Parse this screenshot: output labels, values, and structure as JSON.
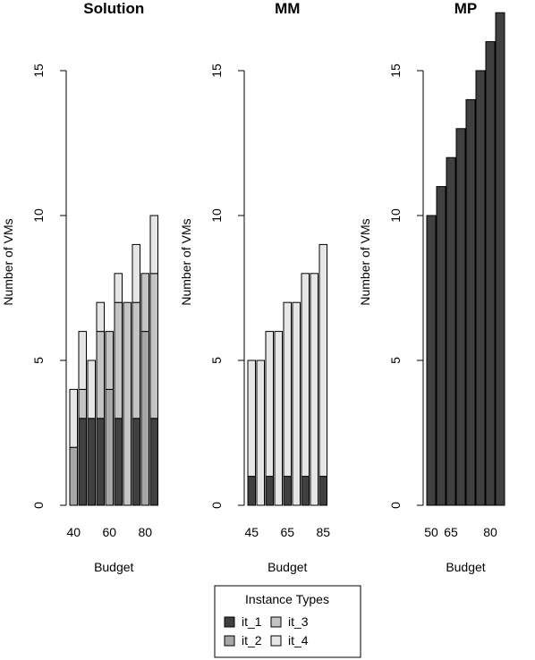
{
  "legend": {
    "title": "Instance Types",
    "entries": [
      {
        "label": "it_1",
        "color": "#404040"
      },
      {
        "label": "it_3",
        "color": "#c4c4c4"
      },
      {
        "label": "it_2",
        "color": "#a6a6a6"
      },
      {
        "label": "it_4",
        "color": "#e6e6e6"
      }
    ]
  },
  "chart_data": [
    {
      "type": "bar",
      "stacked": true,
      "title": "Solution",
      "xlabel": "Budget",
      "ylabel": "Number of VMs",
      "ylim": [
        0,
        15
      ],
      "yticks": [
        0,
        5,
        10,
        15
      ],
      "xtick_labels": [
        {
          "index": 0,
          "label": "40"
        },
        {
          "index": 4,
          "label": "60"
        },
        {
          "index": 8,
          "label": "80"
        }
      ],
      "series_order": [
        "it_2",
        "it_1",
        "it_3",
        "it_4"
      ],
      "bars": [
        {
          "it_1": 0,
          "it_2": 2,
          "it_3": 0,
          "it_4": 2
        },
        {
          "it_1": 3,
          "it_2": 0,
          "it_3": 1,
          "it_4": 2
        },
        {
          "it_1": 3,
          "it_2": 0,
          "it_3": 0,
          "it_4": 2
        },
        {
          "it_1": 3,
          "it_2": 0,
          "it_3": 3,
          "it_4": 1
        },
        {
          "it_1": 0,
          "it_2": 4,
          "it_3": 2,
          "it_4": 0
        },
        {
          "it_1": 3,
          "it_2": 0,
          "it_3": 4,
          "it_4": 1
        },
        {
          "it_1": 0,
          "it_2": 0,
          "it_3": 7,
          "it_4": 0
        },
        {
          "it_1": 3,
          "it_2": 0,
          "it_3": 4,
          "it_4": 2
        },
        {
          "it_1": 0,
          "it_2": 6,
          "it_3": 2,
          "it_4": 0
        },
        {
          "it_1": 3,
          "it_2": 0,
          "it_3": 5,
          "it_4": 2
        }
      ]
    },
    {
      "type": "bar",
      "stacked": true,
      "title": "MM",
      "xlabel": "Budget",
      "ylabel": "Number of VMs",
      "ylim": [
        0,
        15
      ],
      "yticks": [
        0,
        5,
        10,
        15
      ],
      "xtick_labels": [
        {
          "index": 0,
          "label": "45"
        },
        {
          "index": 4,
          "label": "65"
        },
        {
          "index": 8,
          "label": "85"
        }
      ],
      "series_order": [
        "it_1",
        "it_4"
      ],
      "bars": [
        {
          "it_1": 1,
          "it_4": 4
        },
        {
          "it_1": 0,
          "it_4": 5
        },
        {
          "it_1": 1,
          "it_4": 5
        },
        {
          "it_1": 0,
          "it_4": 6
        },
        {
          "it_1": 1,
          "it_4": 6
        },
        {
          "it_1": 0,
          "it_4": 7
        },
        {
          "it_1": 1,
          "it_4": 7
        },
        {
          "it_1": 0,
          "it_4": 8
        },
        {
          "it_1": 1,
          "it_4": 8
        }
      ]
    },
    {
      "type": "bar",
      "stacked": true,
      "title": "MP",
      "xlabel": "Budget",
      "ylabel": "Number of VMs",
      "ylim": [
        0,
        15
      ],
      "yticks": [
        0,
        5,
        10,
        15
      ],
      "xtick_labels": [
        {
          "index": 0,
          "label": "50"
        },
        {
          "index": 2,
          "label": "65"
        },
        {
          "index": 6,
          "label": "80"
        }
      ],
      "series_order": [
        "it_1"
      ],
      "bars": [
        {
          "it_1": 10
        },
        {
          "it_1": 11
        },
        {
          "it_1": 12
        },
        {
          "it_1": 13
        },
        {
          "it_1": 14
        },
        {
          "it_1": 15
        },
        {
          "it_1": 16
        },
        {
          "it_1": 17
        }
      ]
    }
  ]
}
